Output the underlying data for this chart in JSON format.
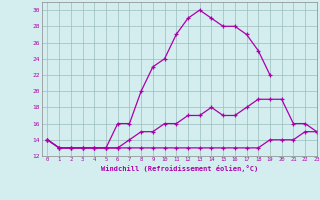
{
  "xlabel": "Windchill (Refroidissement éolien,°C)",
  "background_color": "#d4eef0",
  "line_color": "#aa00aa",
  "hours": [
    0,
    1,
    2,
    3,
    4,
    5,
    6,
    7,
    8,
    9,
    10,
    11,
    12,
    13,
    14,
    15,
    16,
    17,
    18,
    19,
    20,
    21,
    22,
    23
  ],
  "line1": [
    14,
    13,
    13,
    13,
    13,
    13,
    16,
    16,
    20,
    23,
    24,
    27,
    29,
    30,
    29,
    28,
    28,
    27,
    25,
    22,
    null,
    null,
    null,
    null
  ],
  "line2": [
    14,
    13,
    13,
    13,
    13,
    13,
    13,
    14,
    15,
    15,
    16,
    16,
    17,
    17,
    18,
    17,
    17,
    18,
    19,
    19,
    19,
    16,
    16,
    15
  ],
  "line3": [
    14,
    13,
    13,
    13,
    13,
    13,
    13,
    13,
    13,
    13,
    13,
    13,
    13,
    13,
    13,
    13,
    13,
    13,
    13,
    14,
    14,
    14,
    15,
    15
  ],
  "xlim": [
    -0.5,
    23
  ],
  "ylim": [
    12,
    31
  ],
  "yticks": [
    12,
    14,
    16,
    18,
    20,
    22,
    24,
    26,
    28,
    30
  ],
  "xticks": [
    0,
    1,
    2,
    3,
    4,
    5,
    6,
    7,
    8,
    9,
    10,
    11,
    12,
    13,
    14,
    15,
    16,
    17,
    18,
    19,
    20,
    21,
    22,
    23
  ],
  "grid_color": "#9bbcbc",
  "marker": "+"
}
